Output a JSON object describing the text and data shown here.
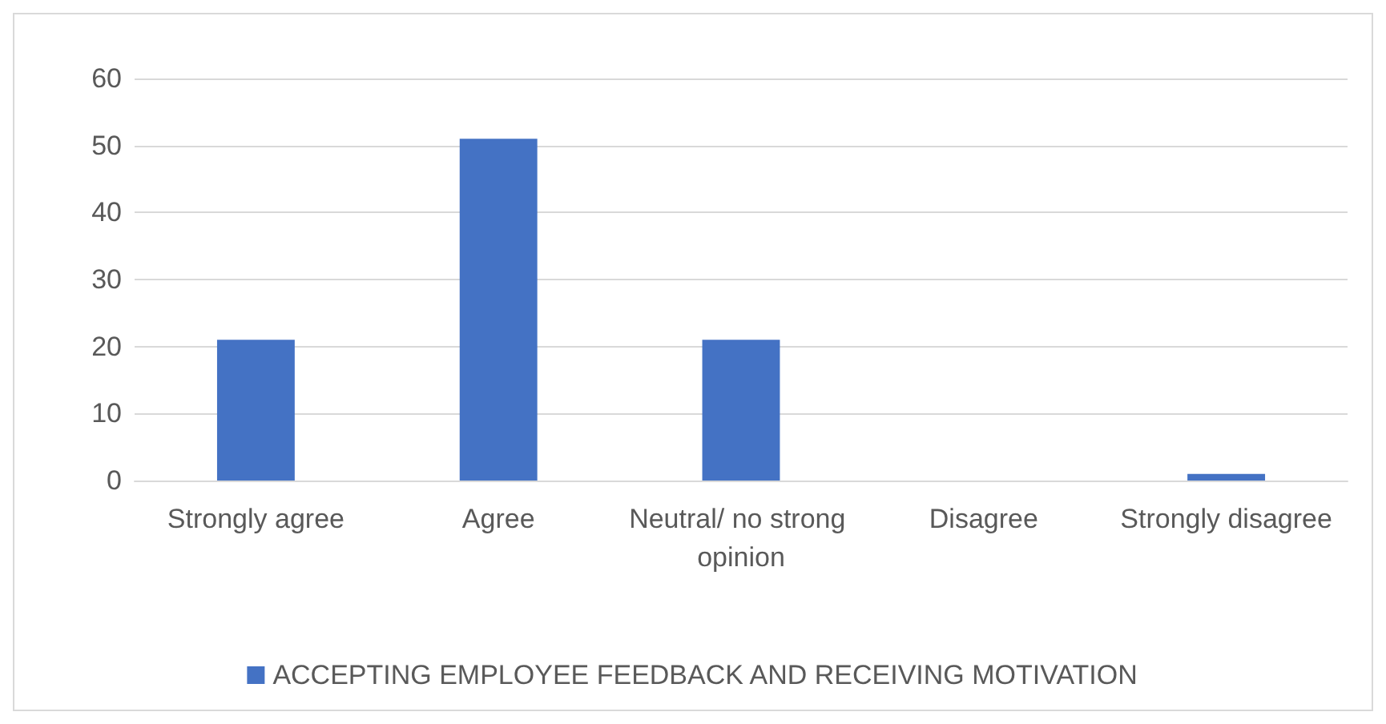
{
  "chart_data": {
    "type": "bar",
    "categories": [
      "Strongly agree",
      "Agree",
      "Neutral/ no strong opinion",
      "Disagree",
      "Strongly disagree"
    ],
    "series": [
      {
        "name": "ACCEPTING EMPLOYEE FEEDBACK AND RECEIVING MOTIVATION",
        "color": "#4472c4",
        "values": [
          21,
          51,
          21,
          0,
          1
        ]
      }
    ],
    "ylim": [
      0,
      60
    ],
    "yticks": [
      0,
      10,
      20,
      30,
      40,
      50,
      60
    ],
    "grid": "y",
    "legend": "bottom"
  }
}
